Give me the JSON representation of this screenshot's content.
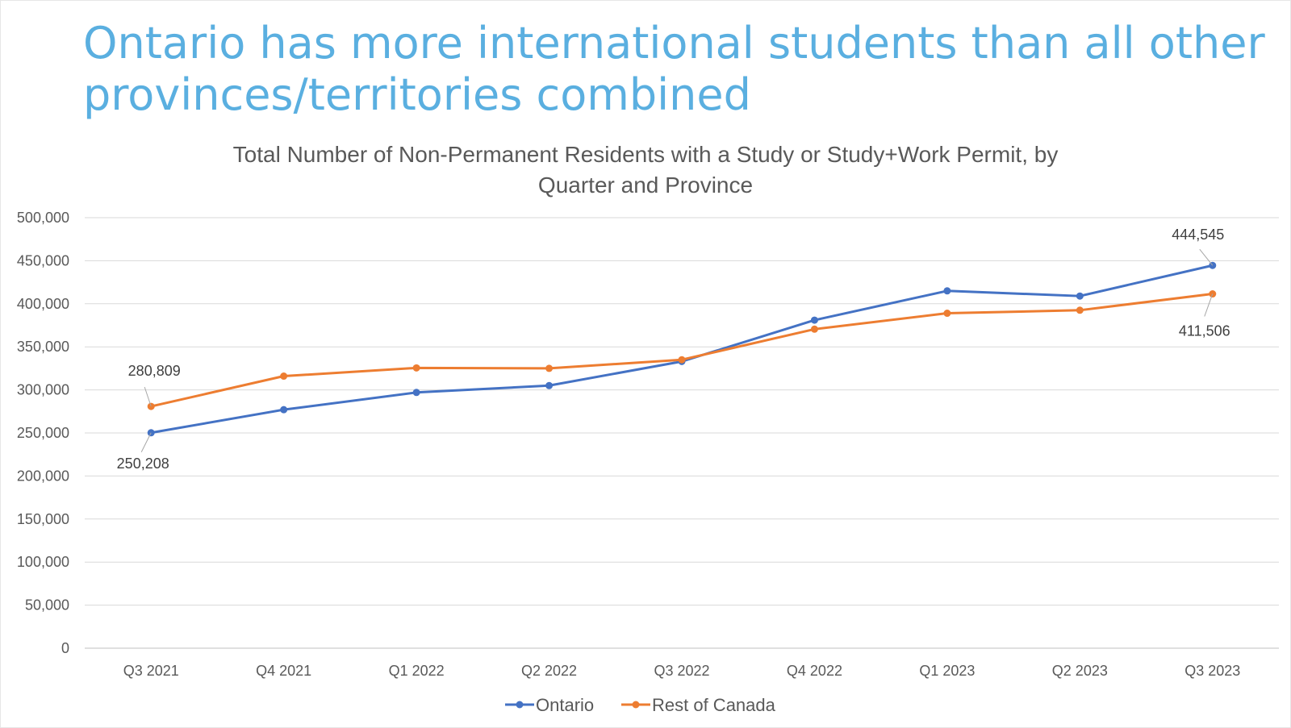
{
  "slide": {
    "headline_line1": "Ontario has more international students than all other",
    "headline_line2": "provinces/territories combined"
  },
  "chart_data": {
    "type": "line",
    "title_line1": "Total Number of Non-Permanent Residents with a Study or Study+Work Permit, by",
    "title_line2": "Quarter and Province",
    "categories": [
      "Q3 2021",
      "Q4 2021",
      "Q1 2022",
      "Q2 2022",
      "Q3 2022",
      "Q4 2022",
      "Q1 2023",
      "Q2 2023",
      "Q3 2023"
    ],
    "series": [
      {
        "name": "Ontario",
        "color": "#4472c4",
        "values": [
          250208,
          277000,
          297000,
          305000,
          333000,
          381000,
          415000,
          409000,
          444545
        ]
      },
      {
        "name": "Rest of Canada",
        "color": "#ed7d31",
        "values": [
          280809,
          316000,
          325500,
          325000,
          335000,
          370500,
          389000,
          392500,
          411506
        ]
      }
    ],
    "data_labels": [
      {
        "series": 0,
        "index": 0,
        "text": "250,208"
      },
      {
        "series": 1,
        "index": 0,
        "text": "280,809"
      },
      {
        "series": 0,
        "index": 8,
        "text": "444,545"
      },
      {
        "series": 1,
        "index": 8,
        "text": "411,506"
      }
    ],
    "ylim": [
      0,
      500000
    ],
    "y_ticks": [
      0,
      50000,
      100000,
      150000,
      200000,
      250000,
      300000,
      350000,
      400000,
      450000,
      500000
    ],
    "y_tick_labels": [
      "0",
      "50,000",
      "100,000",
      "150,000",
      "200,000",
      "250,000",
      "300,000",
      "350,000",
      "400,000",
      "450,000",
      "500,000"
    ],
    "grid": true,
    "legend_position": "bottom"
  }
}
